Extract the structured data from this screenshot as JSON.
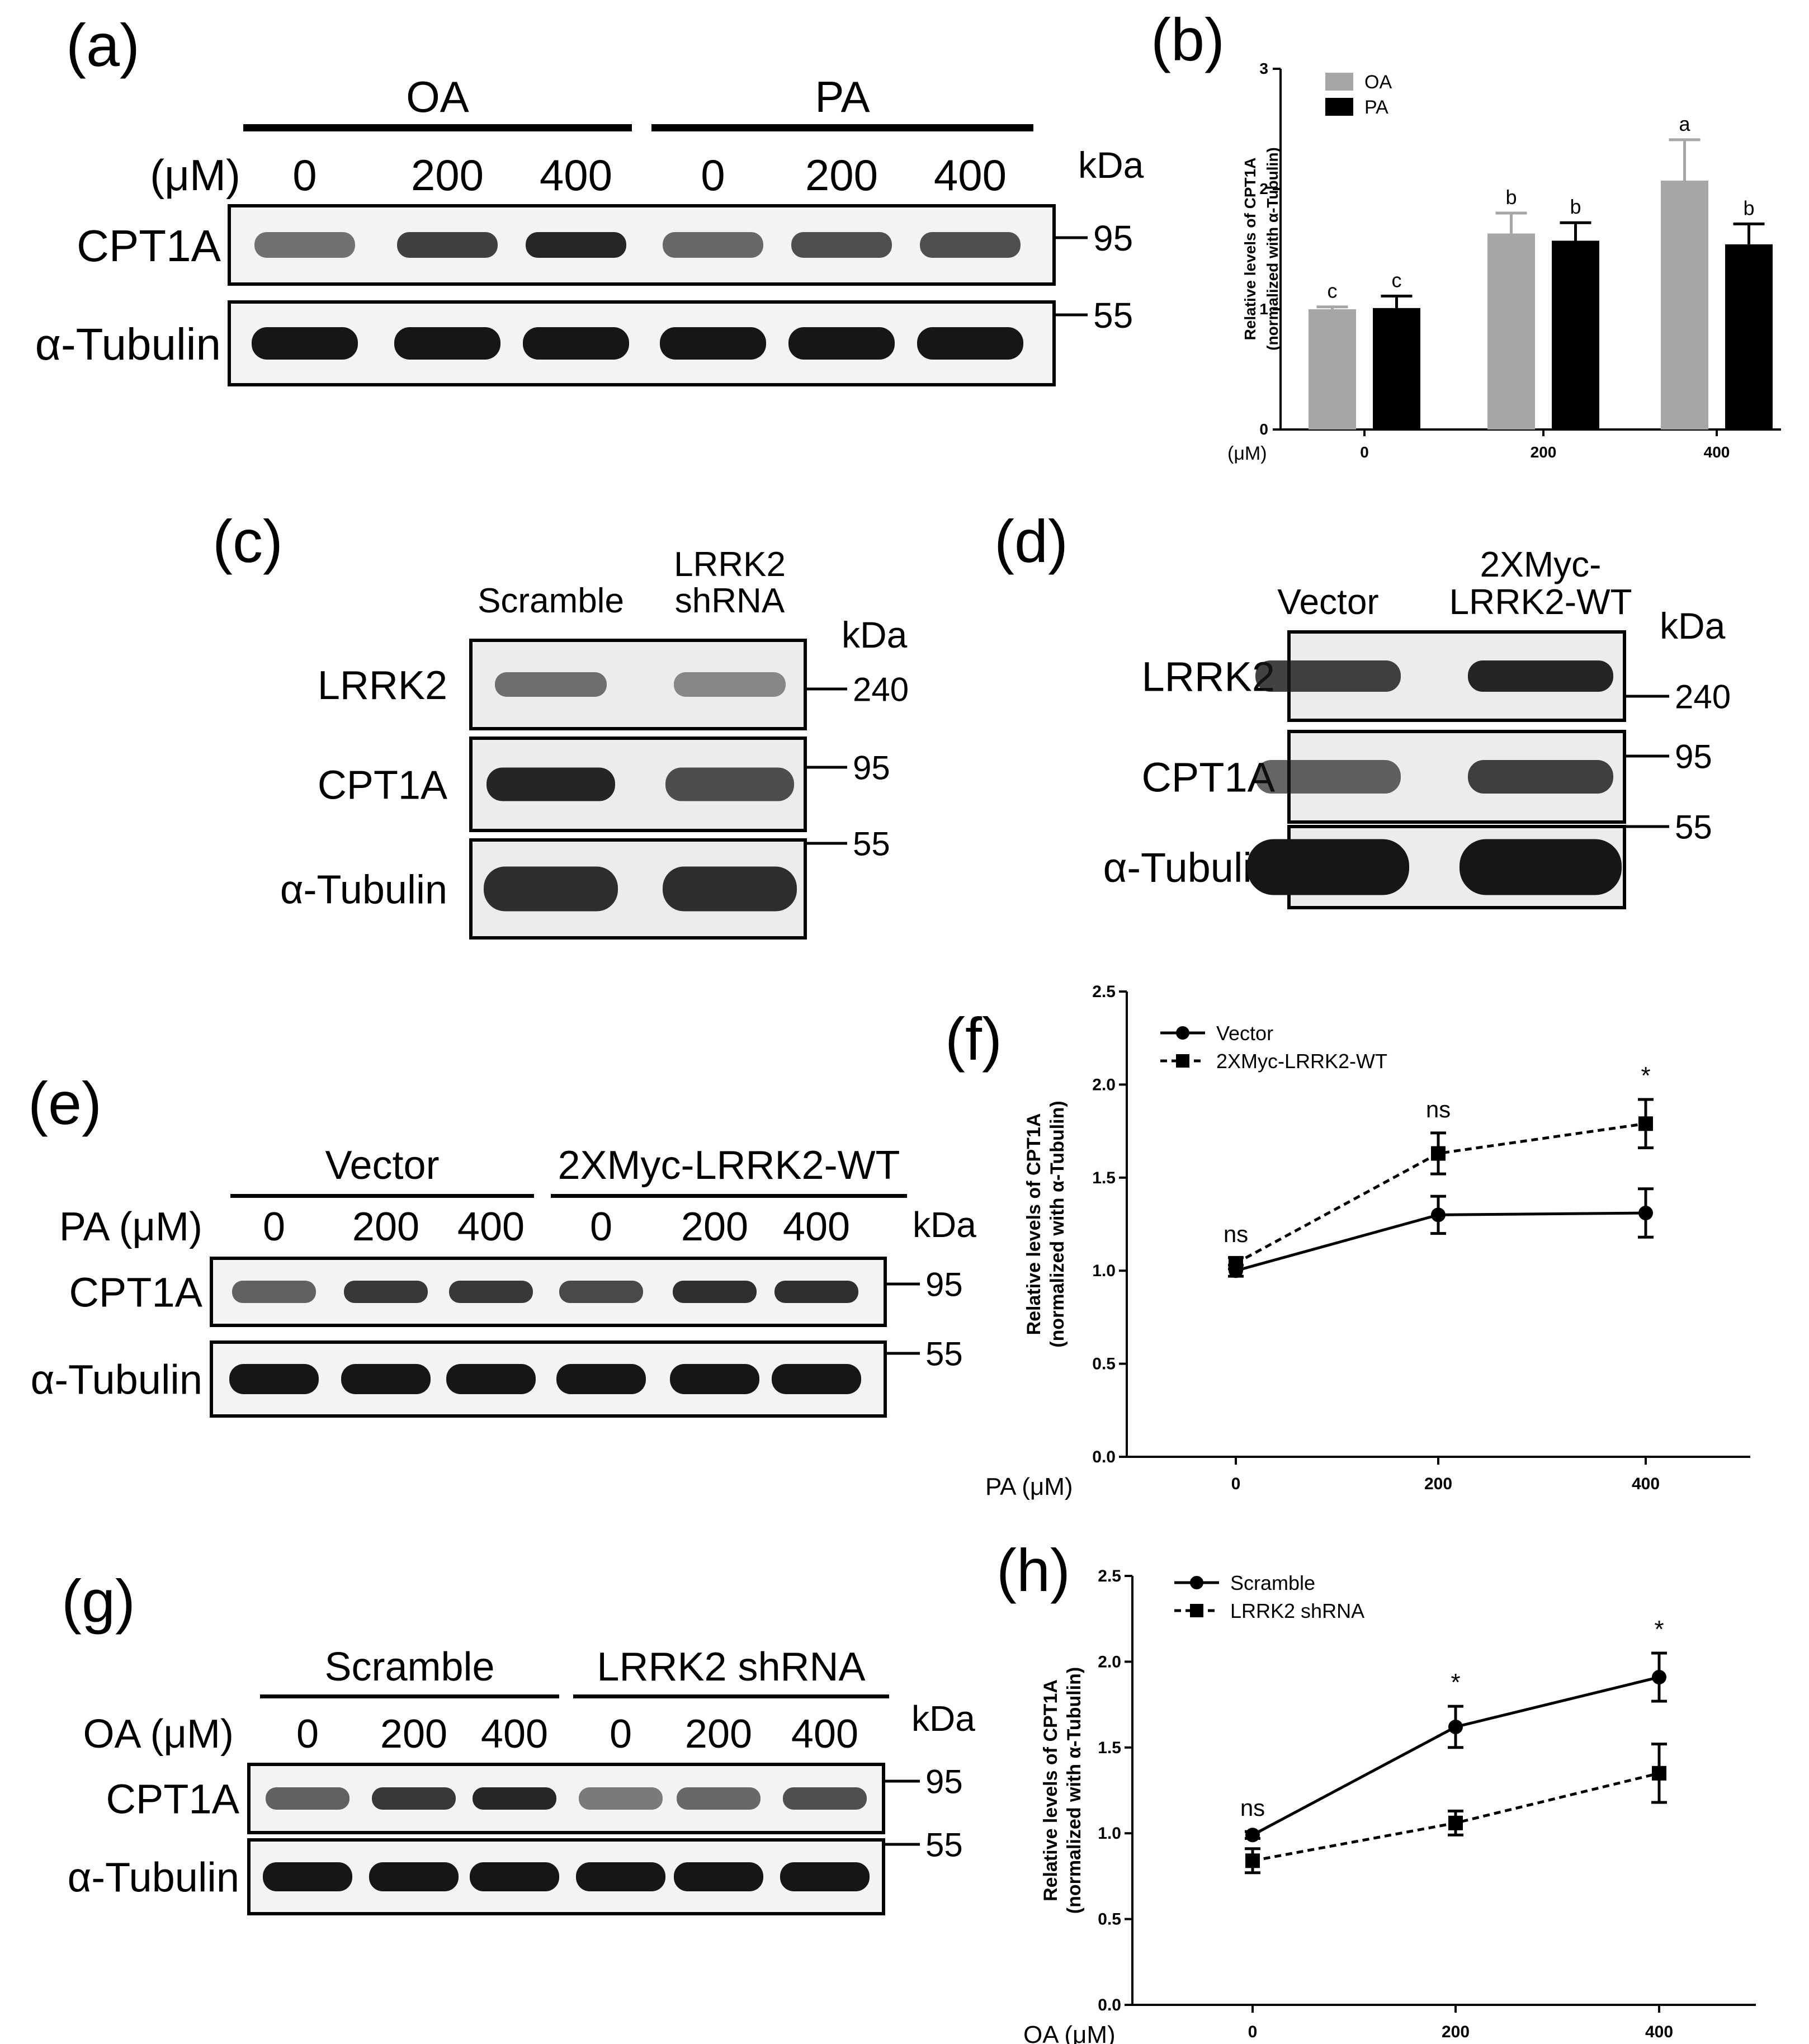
{
  "panel_labels": {
    "a": "(a)",
    "b": "(b)",
    "c": "(c)",
    "d": "(d)",
    "e": "(e)",
    "f": "(f)",
    "g": "(g)",
    "h": "(h)"
  },
  "blots": {
    "a": {
      "group_labels": [
        "OA",
        "PA"
      ],
      "unit": "(μM)",
      "doses": [
        "0",
        "200",
        "400",
        "0",
        "200",
        "400"
      ],
      "kda": "kDa",
      "rows": [
        {
          "label": "CPT1A",
          "marker": "95",
          "intensity": [
            0.45,
            0.75,
            0.9,
            0.5,
            0.65,
            0.65
          ]
        },
        {
          "label": "α-Tubulin",
          "marker": "55",
          "intensity": [
            1,
            1,
            1,
            1,
            1,
            1
          ]
        }
      ]
    },
    "c": {
      "lanes": [
        "Scramble",
        "LRRK2\nshRNA"
      ],
      "kda": "kDa",
      "rows": [
        {
          "label": "LRRK2",
          "marker": "240",
          "intensity": [
            0.45,
            0.3
          ]
        },
        {
          "label": "CPT1A",
          "marker": "95",
          "intensity": [
            0.9,
            0.65
          ]
        },
        {
          "label": "α-Tubulin",
          "marker": "55",
          "intensity": [
            0.85,
            0.85
          ]
        }
      ]
    },
    "d": {
      "lanes": [
        "Vector",
        "2XMyc-\nLRRK2-WT"
      ],
      "kda": "kDa",
      "rows": [
        {
          "label": "LRRK2",
          "marker": "240",
          "intensity": [
            0.75,
            0.9
          ]
        },
        {
          "label": "CPT1A",
          "marker": "95",
          "intensity": [
            0.55,
            0.75
          ]
        },
        {
          "label": "α-Tubulin",
          "marker": "55",
          "intensity": [
            1,
            1
          ]
        }
      ]
    },
    "e": {
      "group_labels": [
        "Vector",
        "2XMyc-LRRK2-WT"
      ],
      "unit": "PA (μM)",
      "doses": [
        "0",
        "200",
        "400",
        "0",
        "200",
        "400"
      ],
      "kda": "kDa",
      "rows": [
        {
          "label": "CPT1A",
          "marker": "95",
          "intensity": [
            0.55,
            0.8,
            0.8,
            0.7,
            0.85,
            0.85
          ]
        },
        {
          "label": "α-Tubulin",
          "marker": "55",
          "intensity": [
            1,
            1,
            1,
            1,
            1,
            1
          ]
        }
      ]
    },
    "g": {
      "group_labels": [
        "Scramble",
        "LRRK2 shRNA"
      ],
      "unit": "OA (μM)",
      "doses": [
        "0",
        "200",
        "400",
        "0",
        "200",
        "400"
      ],
      "kda": "kDa",
      "rows": [
        {
          "label": "CPT1A",
          "marker": "95",
          "intensity": [
            0.55,
            0.8,
            0.9,
            0.4,
            0.5,
            0.65
          ]
        },
        {
          "label": "α-Tubulin",
          "marker": "55",
          "intensity": [
            1,
            1,
            1,
            1,
            1,
            1
          ]
        }
      ]
    }
  },
  "chart_data": [
    {
      "panel": "b",
      "type": "bar",
      "categories": [
        "0",
        "200",
        "400"
      ],
      "xunit": "(μM)",
      "ylabel": [
        "Relative levels of CPT1A",
        "(normalized with α-Tubulin)"
      ],
      "ylim": [
        0,
        3
      ],
      "yticks": [
        "0",
        "1",
        "2",
        "3"
      ],
      "legend_position": "top-left",
      "series": [
        {
          "name": "OA",
          "color": "#a6a6a6",
          "values": [
            1.0,
            1.63,
            2.07
          ],
          "errors": [
            0.02,
            0.17,
            0.34
          ],
          "letters": [
            "c",
            "b",
            "a"
          ]
        },
        {
          "name": "PA",
          "color": "#000000",
          "values": [
            1.01,
            1.57,
            1.54
          ],
          "errors": [
            0.1,
            0.15,
            0.17
          ],
          "letters": [
            "c",
            "b",
            "b"
          ]
        }
      ]
    },
    {
      "panel": "f",
      "type": "line",
      "x": [
        "0",
        "200",
        "400"
      ],
      "xlabel": "PA (μM)",
      "ylabel": [
        "Relative levels of CPT1A",
        "(normalized with α-Tubulin)"
      ],
      "ylim": [
        0,
        2.5
      ],
      "yticks": [
        "0.0",
        "0.5",
        "1.0",
        "1.5",
        "2.0",
        "2.5"
      ],
      "legend_position": "top-left",
      "series": [
        {
          "name": "Vector",
          "marker": "circle",
          "dash": false,
          "values": [
            1.0,
            1.3,
            1.31
          ],
          "errors": [
            0.03,
            0.1,
            0.13
          ]
        },
        {
          "name": "2XMyc-LRRK2-WT",
          "marker": "square",
          "dash": true,
          "values": [
            1.04,
            1.63,
            1.79
          ],
          "errors": [
            0.03,
            0.11,
            0.13
          ]
        }
      ],
      "annotations": [
        "ns",
        "ns",
        "*"
      ]
    },
    {
      "panel": "h",
      "type": "line",
      "x": [
        "0",
        "200",
        "400"
      ],
      "xlabel": "OA (μM)",
      "ylabel": [
        "Relative levels of CPT1A",
        "(normalized with α-Tubulin)"
      ],
      "ylim": [
        0,
        2.5
      ],
      "yticks": [
        "0.0",
        "0.5",
        "1.0",
        "1.5",
        "2.0",
        "2.5"
      ],
      "legend_position": "top-left",
      "series": [
        {
          "name": "Scramble",
          "marker": "circle",
          "dash": false,
          "values": [
            0.99,
            1.62,
            1.91
          ],
          "errors": [
            0.02,
            0.12,
            0.14
          ]
        },
        {
          "name": "LRRK2 shRNA",
          "marker": "square",
          "dash": true,
          "values": [
            0.84,
            1.06,
            1.35
          ],
          "errors": [
            0.07,
            0.07,
            0.17
          ]
        }
      ],
      "annotations": [
        "ns",
        "*",
        "*"
      ]
    }
  ]
}
